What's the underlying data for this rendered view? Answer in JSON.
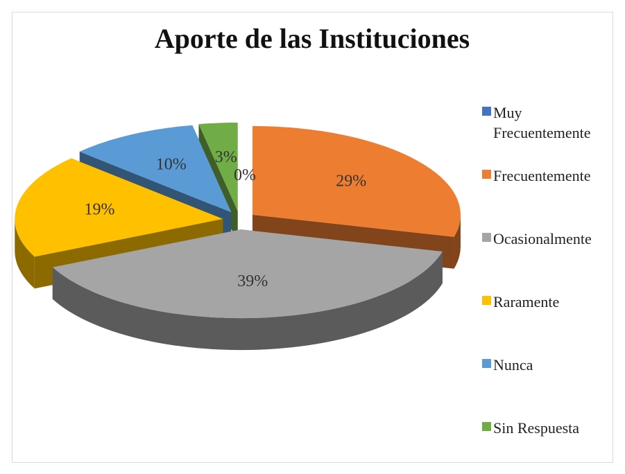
{
  "chart_data": {
    "type": "pie",
    "title": "Aporte de las Instituciones",
    "categories": [
      "Muy Frecuentemente",
      "Frecuentemente",
      "Ocasionalmente",
      "Raramente",
      "Nunca",
      "Sin Respuesta"
    ],
    "values": [
      0,
      29,
      39,
      19,
      10,
      3
    ],
    "value_labels": [
      "0%",
      "29%",
      "39%",
      "19%",
      "10%",
      "3%"
    ],
    "colors": [
      "#4472c4",
      "#ed7d31",
      "#a5a5a5",
      "#ffc000",
      "#5b9bd5",
      "#70ad47"
    ],
    "legend": "right"
  }
}
